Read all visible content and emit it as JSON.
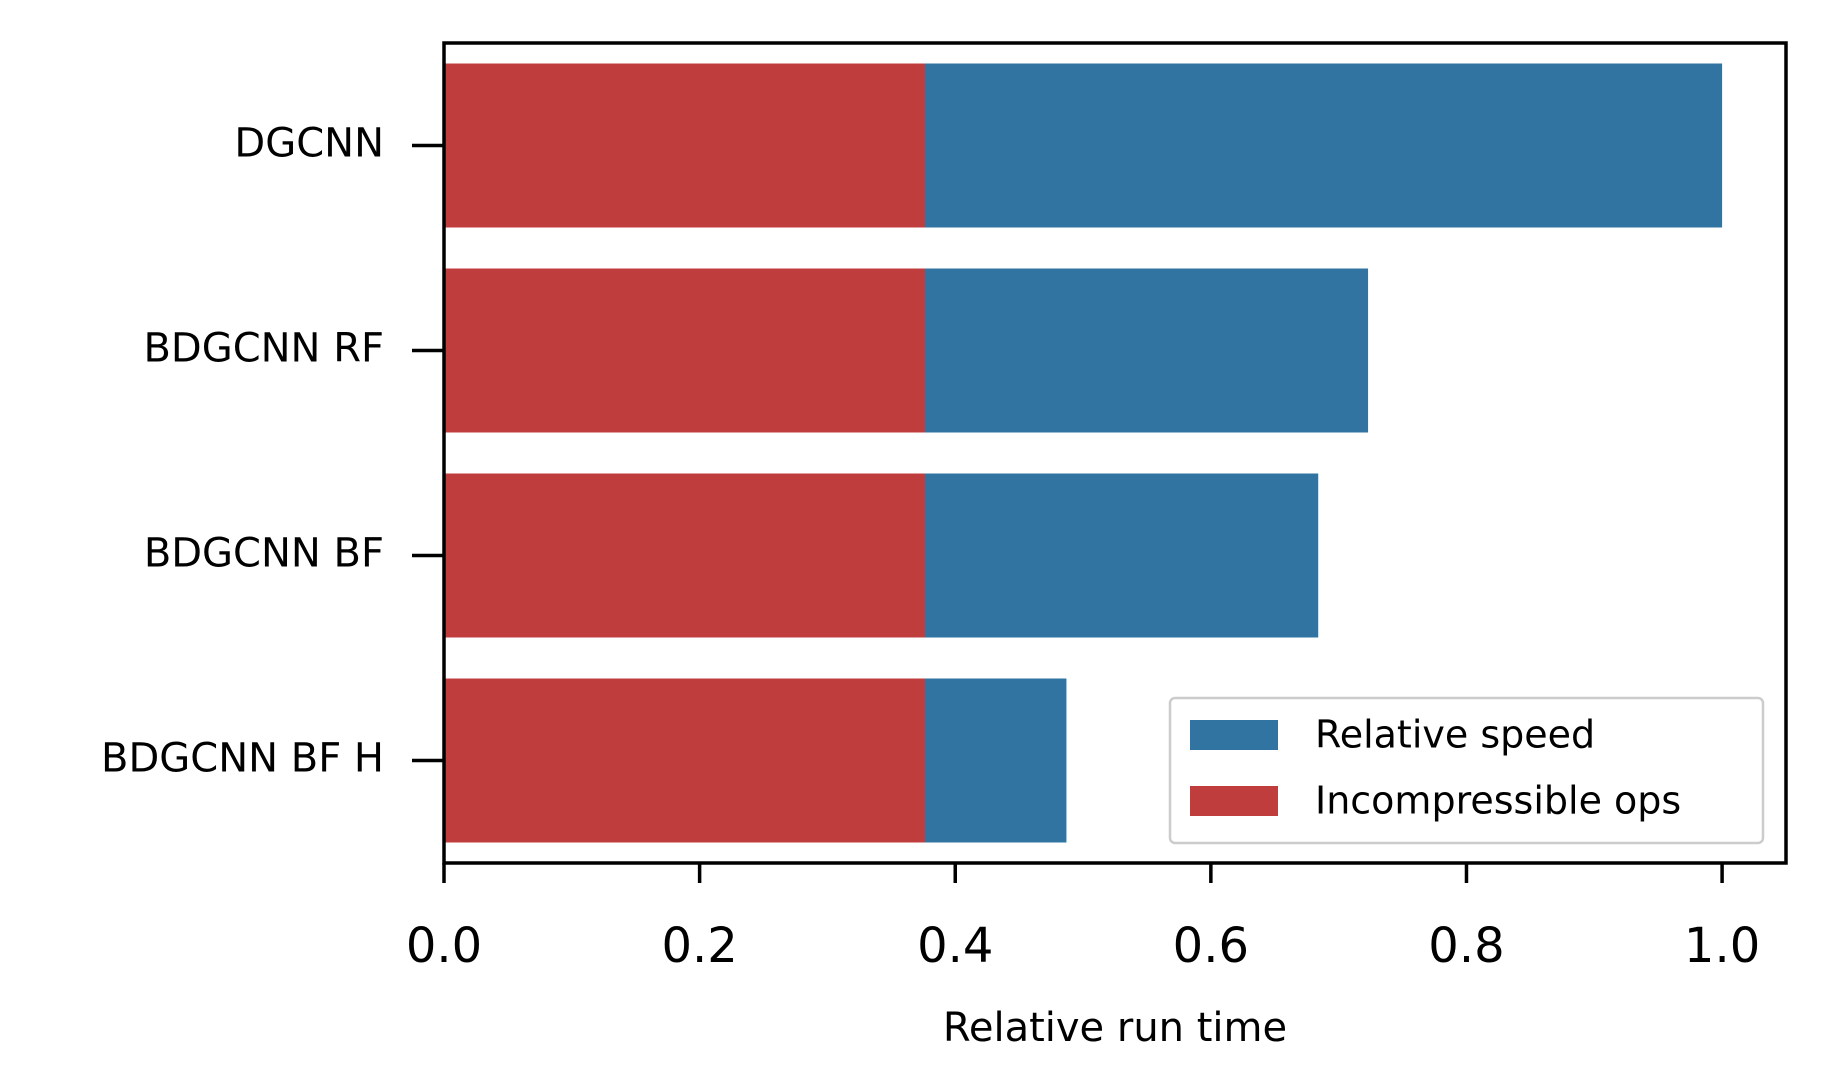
{
  "chart_data": {
    "type": "bar",
    "orientation": "horizontal",
    "categories": [
      "DGCNN",
      "BDGCNN RF",
      "BDGCNN BF",
      "BDGCNN BF H"
    ],
    "series": [
      {
        "name": "Relative speed",
        "color": "#3274a1",
        "values": [
          1.0,
          0.723,
          0.684,
          0.487
        ]
      },
      {
        "name": "Incompressible ops",
        "color": "#c03d3e",
        "values": [
          0.376,
          0.376,
          0.376,
          0.376
        ]
      }
    ],
    "xlabel": "Relative run time",
    "xlim": [
      0,
      1.05
    ],
    "xticks": [
      {
        "value": 0,
        "label": "0.0"
      },
      0.2,
      0.4,
      0.6,
      0.8,
      {
        "value": 1,
        "label": "1.0"
      }
    ],
    "grid": false,
    "legend": "lower right"
  }
}
